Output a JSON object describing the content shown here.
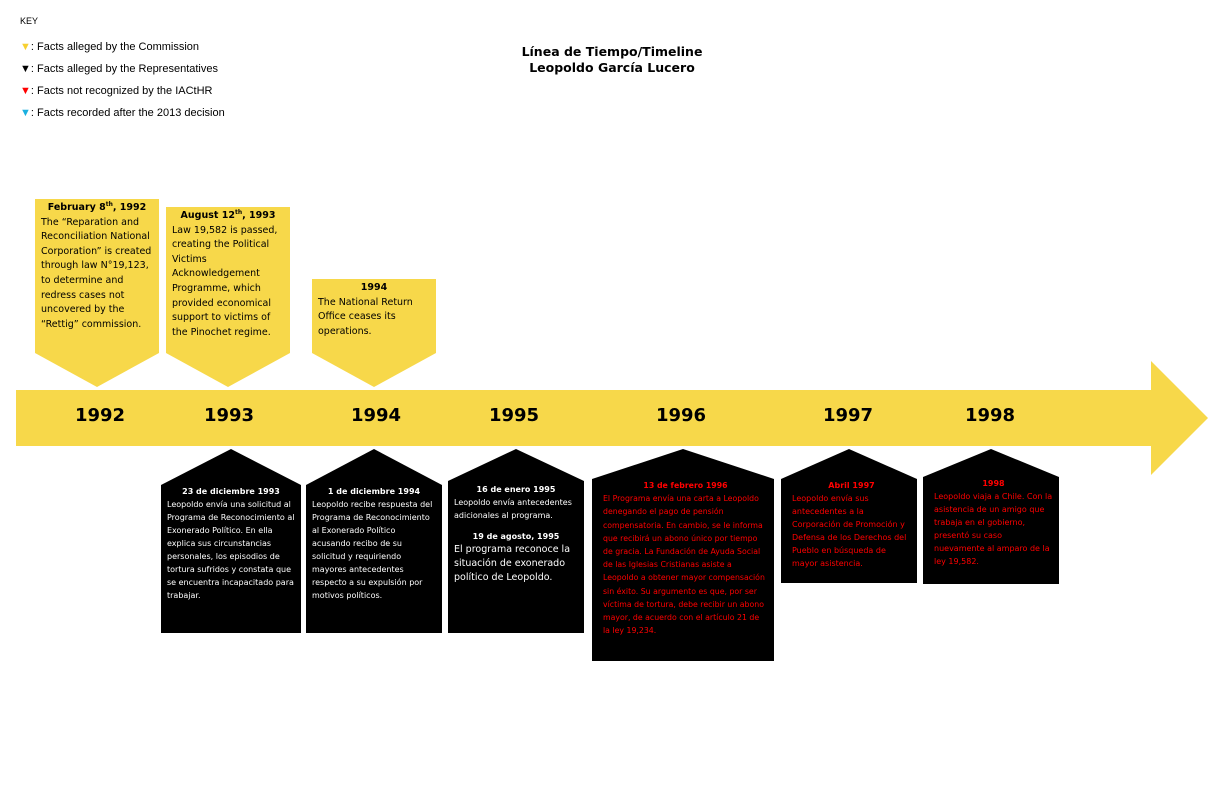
{
  "key": {
    "title": "KEY",
    "items": [
      {
        "marker": "▼",
        "color": "#f7d030",
        "text": ": Facts alleged by the Commission"
      },
      {
        "marker": "▼",
        "color": "#000000",
        "text": ": Facts alleged by the Representatives"
      },
      {
        "marker": "▼",
        "color": "#ff0000",
        "text": ": Facts not recognized by the IACtHR"
      },
      {
        "marker": "▼",
        "color": "#1ab0e0",
        "text": ": Facts recorded after the 2013 decision"
      }
    ]
  },
  "title": {
    "line1": "Línea de Tiempo/Timeline",
    "line2": "Leopoldo García Lucero"
  },
  "colors": {
    "accent_yellow": "#f7d84a",
    "black": "#000000",
    "red": "#ff0000"
  },
  "years": [
    "1992",
    "1993",
    "1994",
    "1995",
    "1996",
    "1997",
    "1998"
  ],
  "events_above": [
    {
      "date_main": "February 8",
      "date_sup": "th",
      "date_tail": ", 1992",
      "text": "The “Reparation and Reconciliation National Corporation” is created through law N°19,123, to determine and redress cases not uncovered by the “Rettig” commission."
    },
    {
      "date_main": "August 12",
      "date_sup": "th",
      "date_tail": ", 1993",
      "text": "Law 19,582 is passed, creating the Political Victims Acknowledgement Programme, which provided economical support to victims of the Pinochet regime."
    },
    {
      "date_main": "1994",
      "date_sup": "",
      "date_tail": "",
      "text": "The National Return Office ceases its operations."
    }
  ],
  "events_below": [
    {
      "date": "23 de diciembre 1993",
      "text": "Leopoldo envía una solicitud al Programa de Reconocimiento al Exonerado Político. En ella explica sus circunstancias personales, los episodios de tortura sufridos y constata que se encuentra incapacitado para trabajar."
    },
    {
      "date": "1 de diciembre 1994",
      "text": "Leopoldo recibe respuesta del Programa de Reconocimiento al Exonerado Político acusando recibo de su solicitud y requiriendo mayores antecedentes respecto a su expulsión por motivos políticos."
    },
    {
      "date": "16 de enero 1995",
      "text": "Leopoldo envía antecedentes adicionales al programa.",
      "date2": "19 de agosto, 1995",
      "text2": "El programa reconoce la situación de exonerado político de Leopoldo."
    },
    {
      "date": "13 de febrero 1996",
      "text": "El Programa envía una carta a Leopoldo denegando el pago de pensión compensatoria. En cambio, se le informa que recibirá un abono único por tiempo de gracia. La Fundación de Ayuda Social de las Iglesias Cristianas asiste a Leopoldo a obtener mayor compensación sin éxito. Su argumento es que, por ser víctima de tortura, debe recibir un abono mayor, de acuerdo con el artículo 21 de la ley 19,234."
    },
    {
      "date": "Abril 1997",
      "text": "Leopoldo envía sus antecedentes a la Corporación de Promoción y Defensa de los Derechos del Pueblo en búsqueda de mayor asistencia."
    },
    {
      "date": "1998",
      "text": "Leopoldo viaja a Chile. Con la asistencia de un amigo que trabaja en el gobierno, presentó su caso nuevamente al amparo de la ley 19,582."
    }
  ]
}
